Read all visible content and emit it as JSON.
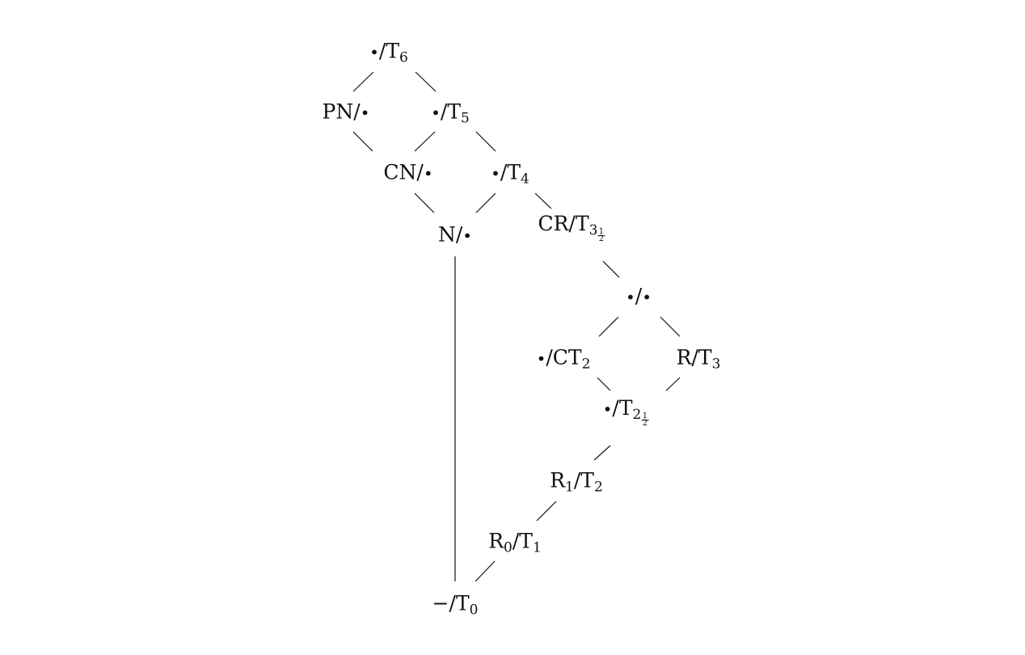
{
  "nodes": [
    {
      "id": "bt6",
      "l": "•",
      "r": "T",
      "sub": "6"
    },
    {
      "id": "pn",
      "l": "PN",
      "r": "•"
    },
    {
      "id": "bt5",
      "l": "•",
      "r": "T",
      "sub": "5"
    },
    {
      "id": "cn",
      "l": "CN",
      "r": "•"
    },
    {
      "id": "bt4",
      "l": "•",
      "r": "T",
      "sub": "4"
    },
    {
      "id": "n",
      "l": "N",
      "r": "•"
    },
    {
      "id": "crt",
      "l": "CR",
      "r": "T",
      "sub": "3",
      "frac": "1|2"
    },
    {
      "id": "bb",
      "l": "•",
      "r": "•"
    },
    {
      "id": "bct2",
      "l": "•",
      "r": "CT",
      "sub": "2"
    },
    {
      "id": "rt3",
      "l": "R",
      "r": "T",
      "sub": "3"
    },
    {
      "id": "bt25",
      "l": "•",
      "r": "T",
      "sub": "2",
      "frac": "1|2"
    },
    {
      "id": "r1t2",
      "l": "R",
      "lsub": "1",
      "r": "T",
      "sub": "2"
    },
    {
      "id": "r0t1",
      "l": "R",
      "lsub": "0",
      "r": "T",
      "sub": "1"
    },
    {
      "id": "dasht0",
      "l": "−",
      "r": "T",
      "sub": "0"
    }
  ],
  "edges": [
    [
      "bt6",
      "pn"
    ],
    [
      "bt6",
      "bt5"
    ],
    [
      "pn",
      "cn"
    ],
    [
      "bt5",
      "cn"
    ],
    [
      "bt5",
      "bt4"
    ],
    [
      "cn",
      "n"
    ],
    [
      "bt4",
      "n"
    ],
    [
      "bt4",
      "crt"
    ],
    [
      "crt",
      "bb"
    ],
    [
      "bb",
      "bct2"
    ],
    [
      "bb",
      "rt3"
    ],
    [
      "bct2",
      "bt25"
    ],
    [
      "rt3",
      "bt25"
    ],
    [
      "bt25",
      "r1t2"
    ],
    [
      "r1t2",
      "r0t1"
    ],
    [
      "r0t1",
      "dasht0"
    ],
    [
      "n",
      "dasht0"
    ]
  ]
}
